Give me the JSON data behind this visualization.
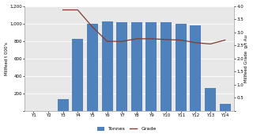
{
  "categories": [
    "Y1",
    "Y2",
    "Y3",
    "Y4",
    "Y5",
    "Y6",
    "Y7",
    "Y8",
    "Y9",
    "Y10",
    "Y11",
    "Y12",
    "Y13",
    "Y14"
  ],
  "bar_values": [
    0,
    0,
    130,
    820,
    1000,
    1020,
    1010,
    1010,
    1010,
    1010,
    1000,
    980,
    260,
    80
  ],
  "grade_x_indices": [
    2,
    3,
    4,
    5,
    6,
    7,
    8,
    9,
    10,
    11,
    12,
    13
  ],
  "grade_vals": [
    3.85,
    3.85,
    3.2,
    2.65,
    2.65,
    2.75,
    2.75,
    2.72,
    2.7,
    2.6,
    2.55,
    2.7
  ],
  "bar_color": "#4f81bd",
  "line_color": "#833c2d",
  "ylim_left": [
    0,
    1200
  ],
  "ylim_right": [
    0,
    4.0
  ],
  "yticks_left": [
    0,
    200,
    400,
    600,
    800,
    1000,
    1200
  ],
  "ytick_labels_left": [
    "",
    "200",
    "400",
    "600",
    "800",
    "1,000",
    "1,200"
  ],
  "yticks_right": [
    0.0,
    0.5,
    1.0,
    1.5,
    2.0,
    2.5,
    3.0,
    3.5,
    4.0
  ],
  "ytick_labels_right": [
    "",
    "0.5",
    "1.0",
    "1.5",
    "2.0",
    "2.5",
    "3.0",
    "3.5",
    "4.0"
  ],
  "ylabel_left": "Millfeed t 000's",
  "ylabel_right": "Millfeed Grade  g/t Au",
  "plot_bg": "#e8e8e8",
  "fig_bg": "#ffffff"
}
